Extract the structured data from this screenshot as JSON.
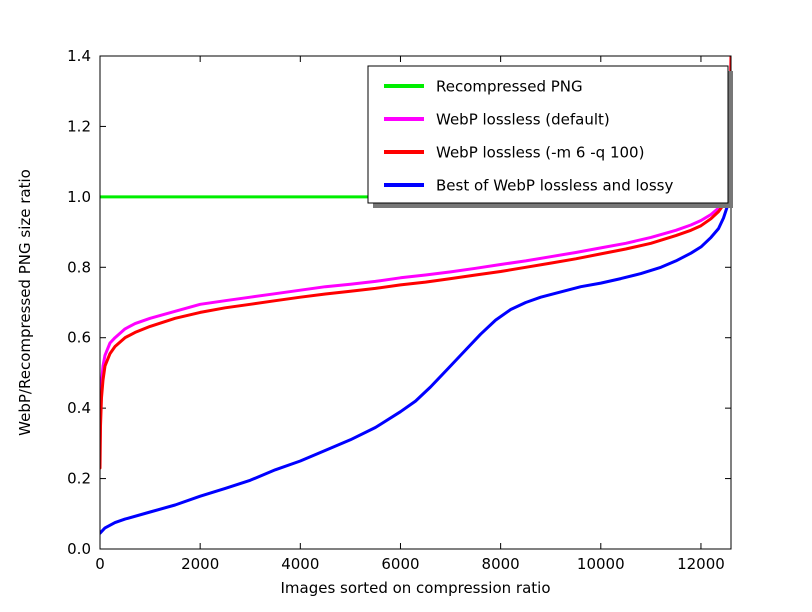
{
  "chart_data": {
    "type": "line",
    "title": "",
    "xlabel": "Images sorted on compression ratio",
    "ylabel": "WebP/Recompressed PNG size ratio",
    "xlim": [
      0,
      12600
    ],
    "ylim": [
      0,
      1.4
    ],
    "grid": false,
    "xticks": [
      0,
      2000,
      4000,
      6000,
      8000,
      10000,
      12000
    ],
    "xtick_labels": [
      "0",
      "2000",
      "4000",
      "6000",
      "8000",
      "10000",
      "12000"
    ],
    "yticks": [
      0.0,
      0.2,
      0.4,
      0.6,
      0.8,
      1.0,
      1.2,
      1.4
    ],
    "ytick_labels": [
      "0.0",
      "0.2",
      "0.4",
      "0.6",
      "0.8",
      "1.0",
      "1.2",
      "1.4"
    ],
    "legend": {
      "position": "upper right",
      "shadow": true,
      "entries": [
        "Recompressed PNG",
        "WebP lossless (default)",
        "WebP lossless (-m 6 -q 100)",
        "Best of WebP lossless and lossy"
      ]
    },
    "series": [
      {
        "name": "Recompressed PNG",
        "color": "#00ee00",
        "linewidth": 3,
        "points": [
          [
            0,
            1.0
          ],
          [
            12600,
            1.0
          ]
        ]
      },
      {
        "name": "WebP lossless (default)",
        "color": "#ff00ff",
        "linewidth": 3,
        "points": [
          [
            0,
            0.3
          ],
          [
            10,
            0.4
          ],
          [
            30,
            0.47
          ],
          [
            60,
            0.52
          ],
          [
            100,
            0.55
          ],
          [
            200,
            0.585
          ],
          [
            300,
            0.6
          ],
          [
            500,
            0.625
          ],
          [
            700,
            0.64
          ],
          [
            1000,
            0.655
          ],
          [
            1500,
            0.675
          ],
          [
            2000,
            0.695
          ],
          [
            2500,
            0.705
          ],
          [
            3000,
            0.715
          ],
          [
            3500,
            0.725
          ],
          [
            4000,
            0.735
          ],
          [
            4500,
            0.745
          ],
          [
            5000,
            0.752
          ],
          [
            5500,
            0.76
          ],
          [
            6000,
            0.77
          ],
          [
            6500,
            0.778
          ],
          [
            7000,
            0.787
          ],
          [
            7500,
            0.797
          ],
          [
            8000,
            0.808
          ],
          [
            8500,
            0.818
          ],
          [
            9000,
            0.83
          ],
          [
            9500,
            0.842
          ],
          [
            10000,
            0.855
          ],
          [
            10500,
            0.868
          ],
          [
            11000,
            0.885
          ],
          [
            11500,
            0.905
          ],
          [
            11800,
            0.92
          ],
          [
            12000,
            0.933
          ],
          [
            12200,
            0.95
          ],
          [
            12350,
            0.968
          ],
          [
            12450,
            0.985
          ],
          [
            12500,
            1.0
          ],
          [
            12550,
            1.05
          ],
          [
            12580,
            1.15
          ],
          [
            12600,
            1.4
          ]
        ]
      },
      {
        "name": "WebP lossless (-m 6 -q 100)",
        "color": "#ff0000",
        "linewidth": 3,
        "points": [
          [
            0,
            0.23
          ],
          [
            10,
            0.35
          ],
          [
            30,
            0.43
          ],
          [
            60,
            0.48
          ],
          [
            100,
            0.52
          ],
          [
            200,
            0.555
          ],
          [
            300,
            0.575
          ],
          [
            500,
            0.6
          ],
          [
            700,
            0.615
          ],
          [
            1000,
            0.632
          ],
          [
            1500,
            0.655
          ],
          [
            2000,
            0.672
          ],
          [
            2500,
            0.685
          ],
          [
            3000,
            0.695
          ],
          [
            3500,
            0.705
          ],
          [
            4000,
            0.715
          ],
          [
            4500,
            0.724
          ],
          [
            5000,
            0.732
          ],
          [
            5500,
            0.74
          ],
          [
            6000,
            0.75
          ],
          [
            6500,
            0.758
          ],
          [
            7000,
            0.768
          ],
          [
            7500,
            0.778
          ],
          [
            8000,
            0.788
          ],
          [
            8500,
            0.8
          ],
          [
            9000,
            0.812
          ],
          [
            9500,
            0.824
          ],
          [
            10000,
            0.838
          ],
          [
            10500,
            0.852
          ],
          [
            11000,
            0.868
          ],
          [
            11500,
            0.89
          ],
          [
            11800,
            0.905
          ],
          [
            12000,
            0.918
          ],
          [
            12200,
            0.938
          ],
          [
            12350,
            0.958
          ],
          [
            12450,
            0.978
          ],
          [
            12500,
            0.995
          ],
          [
            12550,
            1.04
          ],
          [
            12580,
            1.13
          ],
          [
            12600,
            1.4
          ]
        ]
      },
      {
        "name": "Best of WebP lossless and lossy",
        "color": "#0000ff",
        "linewidth": 3,
        "points": [
          [
            0,
            0.045
          ],
          [
            100,
            0.06
          ],
          [
            300,
            0.075
          ],
          [
            500,
            0.085
          ],
          [
            1000,
            0.105
          ],
          [
            1500,
            0.125
          ],
          [
            2000,
            0.15
          ],
          [
            2500,
            0.172
          ],
          [
            3000,
            0.195
          ],
          [
            3500,
            0.225
          ],
          [
            4000,
            0.25
          ],
          [
            4500,
            0.28
          ],
          [
            5000,
            0.31
          ],
          [
            5500,
            0.345
          ],
          [
            6000,
            0.39
          ],
          [
            6300,
            0.42
          ],
          [
            6600,
            0.46
          ],
          [
            7000,
            0.52
          ],
          [
            7300,
            0.565
          ],
          [
            7600,
            0.61
          ],
          [
            7900,
            0.65
          ],
          [
            8200,
            0.68
          ],
          [
            8500,
            0.7
          ],
          [
            8800,
            0.715
          ],
          [
            9200,
            0.73
          ],
          [
            9600,
            0.745
          ],
          [
            10000,
            0.755
          ],
          [
            10400,
            0.768
          ],
          [
            10800,
            0.782
          ],
          [
            11200,
            0.8
          ],
          [
            11500,
            0.818
          ],
          [
            11800,
            0.84
          ],
          [
            12000,
            0.858
          ],
          [
            12200,
            0.885
          ],
          [
            12350,
            0.91
          ],
          [
            12450,
            0.94
          ],
          [
            12520,
            0.97
          ],
          [
            12570,
            1.0
          ],
          [
            12600,
            1.15
          ]
        ]
      }
    ]
  }
}
